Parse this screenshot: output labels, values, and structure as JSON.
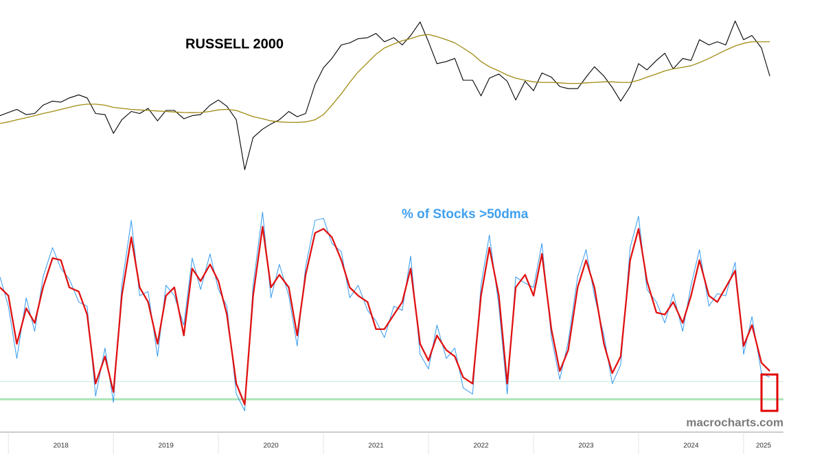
{
  "chart_data": [
    {
      "type": "line",
      "title": "RUSSELL 2000",
      "xlim": [
        2017.92,
        2025.38
      ],
      "ylim": [
        950,
        2500
      ],
      "x": [
        2017.92,
        2018.0,
        2018.08,
        2018.17,
        2018.25,
        2018.33,
        2018.42,
        2018.5,
        2018.58,
        2018.67,
        2018.75,
        2018.83,
        2018.92,
        2019.0,
        2019.08,
        2019.17,
        2019.25,
        2019.33,
        2019.42,
        2019.5,
        2019.58,
        2019.67,
        2019.75,
        2019.83,
        2019.92,
        2020.0,
        2020.08,
        2020.17,
        2020.25,
        2020.33,
        2020.42,
        2020.5,
        2020.58,
        2020.67,
        2020.75,
        2020.83,
        2020.92,
        2021.0,
        2021.08,
        2021.17,
        2021.25,
        2021.33,
        2021.42,
        2021.5,
        2021.58,
        2021.67,
        2021.75,
        2021.83,
        2021.92,
        2022.0,
        2022.08,
        2022.17,
        2022.25,
        2022.33,
        2022.42,
        2022.5,
        2022.58,
        2022.67,
        2022.75,
        2022.83,
        2022.92,
        2023.0,
        2023.08,
        2023.17,
        2023.25,
        2023.33,
        2023.42,
        2023.5,
        2023.58,
        2023.67,
        2023.75,
        2023.83,
        2023.92,
        2024.0,
        2024.08,
        2024.17,
        2024.25,
        2024.33,
        2024.42,
        2024.5,
        2024.58,
        2024.67,
        2024.75,
        2024.83,
        2024.92,
        2025.0,
        2025.08,
        2025.17,
        2025.25
      ],
      "series": [
        {
          "color": "#000000",
          "values": [
            1520,
            1550,
            1580,
            1530,
            1540,
            1620,
            1660,
            1650,
            1690,
            1720,
            1690,
            1540,
            1530,
            1350,
            1480,
            1560,
            1540,
            1590,
            1470,
            1570,
            1570,
            1490,
            1520,
            1530,
            1620,
            1670,
            1610,
            1480,
            1000,
            1310,
            1390,
            1440,
            1480,
            1560,
            1510,
            1540,
            1820,
            1980,
            2070,
            2200,
            2220,
            2260,
            2270,
            2310,
            2230,
            2270,
            2200,
            2290,
            2420,
            2230,
            2020,
            2040,
            2070,
            1860,
            1860,
            1710,
            1880,
            1920,
            1850,
            1670,
            1850,
            1760,
            1930,
            1890,
            1800,
            1780,
            1780,
            1890,
            1990,
            1900,
            1790,
            1660,
            1800,
            2020,
            1960,
            2050,
            2120,
            1970,
            2070,
            2050,
            2250,
            2200,
            2230,
            2200,
            2430,
            2250,
            2290,
            2170,
            1900
          ]
        },
        {
          "color": "#a08a10",
          "values": [
            1445,
            1460,
            1480,
            1500,
            1520,
            1540,
            1560,
            1580,
            1600,
            1620,
            1630,
            1630,
            1620,
            1600,
            1590,
            1580,
            1575,
            1570,
            1565,
            1560,
            1555,
            1550,
            1548,
            1550,
            1560,
            1575,
            1580,
            1570,
            1540,
            1510,
            1490,
            1470,
            1460,
            1455,
            1455,
            1460,
            1480,
            1530,
            1620,
            1730,
            1840,
            1940,
            2030,
            2110,
            2170,
            2210,
            2240,
            2260,
            2290,
            2300,
            2280,
            2250,
            2220,
            2170,
            2110,
            2040,
            1990,
            1950,
            1910,
            1880,
            1860,
            1845,
            1840,
            1840,
            1835,
            1830,
            1830,
            1835,
            1840,
            1845,
            1845,
            1840,
            1840,
            1860,
            1890,
            1920,
            1950,
            1970,
            1985,
            2000,
            2030,
            2070,
            2110,
            2150,
            2190,
            2215,
            2230,
            2230,
            2230
          ]
        }
      ]
    },
    {
      "type": "line",
      "title": "% of Stocks >50dma",
      "xlim": [
        2017.92,
        2025.38
      ],
      "ylim": [
        0,
        100
      ],
      "xticks": [
        2018,
        2019,
        2020,
        2021,
        2022,
        2023,
        2024,
        2025
      ],
      "hlines": [
        {
          "value": 16,
          "color": "#bfe9da"
        },
        {
          "value": 7.5,
          "color": "#a9e3b4"
        }
      ],
      "x": [
        2017.92,
        2018.0,
        2018.08,
        2018.17,
        2018.25,
        2018.33,
        2018.42,
        2018.5,
        2018.58,
        2018.67,
        2018.75,
        2018.83,
        2018.92,
        2019.0,
        2019.08,
        2019.17,
        2019.25,
        2019.33,
        2019.42,
        2019.5,
        2019.58,
        2019.67,
        2019.75,
        2019.83,
        2019.92,
        2020.0,
        2020.08,
        2020.17,
        2020.25,
        2020.33,
        2020.42,
        2020.5,
        2020.58,
        2020.67,
        2020.75,
        2020.83,
        2020.92,
        2021.0,
        2021.08,
        2021.17,
        2021.25,
        2021.33,
        2021.42,
        2021.5,
        2021.58,
        2021.67,
        2021.75,
        2021.83,
        2021.92,
        2022.0,
        2022.08,
        2022.17,
        2022.25,
        2022.33,
        2022.42,
        2022.5,
        2022.58,
        2022.67,
        2022.75,
        2022.83,
        2022.92,
        2023.0,
        2023.08,
        2023.17,
        2023.25,
        2023.33,
        2023.42,
        2023.5,
        2023.58,
        2023.67,
        2023.75,
        2023.83,
        2023.92,
        2024.0,
        2024.08,
        2024.17,
        2024.25,
        2024.33,
        2024.42,
        2024.5,
        2024.58,
        2024.67,
        2024.75,
        2024.83,
        2024.92,
        2025.0,
        2025.08,
        2025.17,
        2025.25
      ],
      "series": [
        {
          "color": "#3399ee",
          "values": [
            66,
            52,
            27,
            56,
            40,
            66,
            80,
            70,
            65,
            54,
            52,
            9,
            32,
            6,
            62,
            93,
            57,
            59,
            28,
            62,
            57,
            43,
            75,
            60,
            77,
            60,
            52,
            10,
            2,
            62,
            97,
            56,
            72,
            57,
            33,
            71,
            93,
            94,
            82,
            78,
            56,
            62,
            50,
            45,
            37,
            52,
            50,
            76,
            29,
            22,
            43,
            27,
            32,
            13,
            10,
            62,
            86,
            52,
            10,
            66,
            63,
            61,
            82,
            37,
            17,
            35,
            66,
            79,
            57,
            38,
            15,
            24,
            80,
            95,
            60,
            54,
            44,
            58,
            40,
            62,
            79,
            52,
            58,
            57,
            73,
            29,
            47,
            20,
            18
          ]
        },
        {
          "color": "#e01010",
          "values": [
            61,
            57,
            34,
            51,
            44,
            61,
            75,
            74,
            61,
            59,
            48,
            15,
            28,
            11,
            57,
            85,
            61,
            54,
            34,
            57,
            61,
            38,
            70,
            64,
            72,
            64,
            48,
            15,
            5,
            57,
            90,
            61,
            67,
            61,
            38,
            67,
            87,
            89,
            85,
            74,
            61,
            57,
            54,
            41,
            41,
            48,
            54,
            70,
            34,
            26,
            38,
            31,
            28,
            18,
            15,
            57,
            80,
            57,
            15,
            61,
            67,
            57,
            77,
            41,
            21,
            31,
            61,
            74,
            61,
            34,
            20,
            28,
            74,
            89,
            64,
            49,
            48,
            54,
            44,
            57,
            74,
            57,
            54,
            61,
            69,
            33,
            43,
            25,
            21
          ]
        }
      ]
    }
  ],
  "watermark": "macrocharts.com"
}
